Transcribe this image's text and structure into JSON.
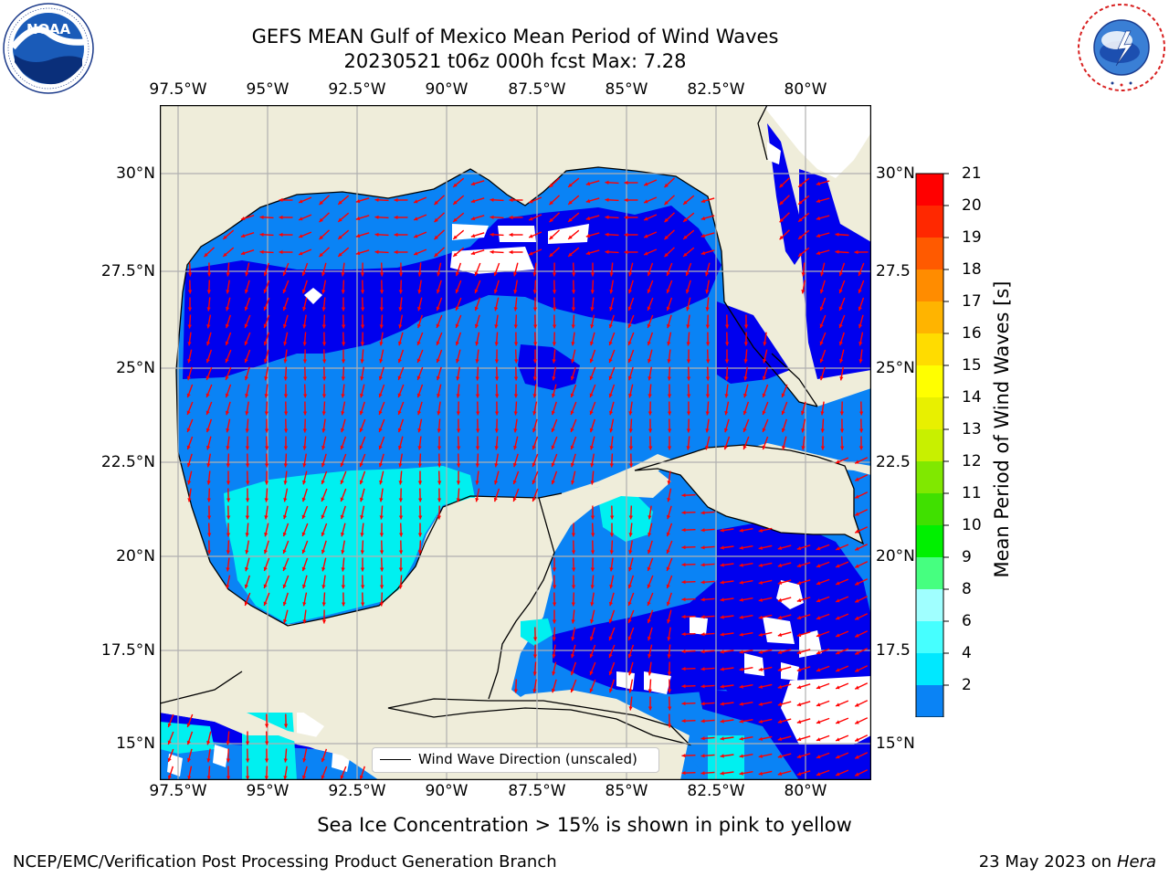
{
  "title": {
    "line1": "GEFS MEAN Gulf of Mexico Mean Period of Wind Waves",
    "line2": "20230521 t06z 000h fcst   Max: 7.28"
  },
  "map": {
    "x_ticks": [
      "97.5°W",
      "95°W",
      "92.5°W",
      "90°W",
      "87.5°W",
      "85°W",
      "82.5°W",
      "80°W"
    ],
    "y_ticks_left": [
      "30°N",
      "27.5°N",
      "25°N",
      "22.5°N",
      "20°N",
      "17.5°N",
      "15°N"
    ],
    "y_ticks_right": [
      "30°N",
      "27.5",
      "25°N",
      "22.5",
      "20°N",
      "17.5",
      "15°N"
    ],
    "colors": {
      "land": "#efedda",
      "water_2_4": "#0a83f5",
      "water_lt2": "#0000ee",
      "water_4_6": "#00f0f0",
      "no_data": "#ffffff",
      "arrow": "#ff0000",
      "grid": "#b0b0b0",
      "coast": "#000000"
    },
    "arrow_direction": "mostly southward, turning westward over the eastern Gulf and Caribbean"
  },
  "legend": {
    "label": "Wind Wave Direction (unscaled)"
  },
  "colorbar": {
    "title": "Mean Period of Wind Waves [s]",
    "labels": [
      "21",
      "20",
      "19",
      "18",
      "17",
      "16",
      "15",
      "14",
      "13",
      "12",
      "11",
      "10",
      "9",
      "8",
      "6",
      "4",
      "2"
    ],
    "levels": [
      2,
      4,
      6,
      8,
      9,
      10,
      11,
      12,
      13,
      14,
      15,
      16,
      17,
      18,
      19,
      20,
      21
    ],
    "colors": [
      "#0a83f5",
      "#00e8ff",
      "#46ffff",
      "#a0ffff",
      "#46ff80",
      "#00f000",
      "#40e000",
      "#80e800",
      "#c8f000",
      "#e8f000",
      "#ffff00",
      "#ffdc00",
      "#ffb400",
      "#ff8c00",
      "#ff5a00",
      "#ff2800",
      "#ff0000"
    ],
    "under_color": "#0000ee"
  },
  "notes": {
    "ice": "Sea Ice Concentration > 15% is shown in pink to yellow",
    "footer_left": "NCEP/EMC/Verification Post Processing Product Generation Branch",
    "footer_date": "23 May 2023 on",
    "footer_host": "Hera"
  },
  "logos": {
    "noaa_text": "NOAA",
    "noaa_ring": "NATIONAL OCEANIC AND ATMOSPHERIC ADMINISTRATION · U.S. DEPARTMENT OF COMMERCE",
    "nws_ring": "NATIONAL WEATHER SERVICE"
  }
}
